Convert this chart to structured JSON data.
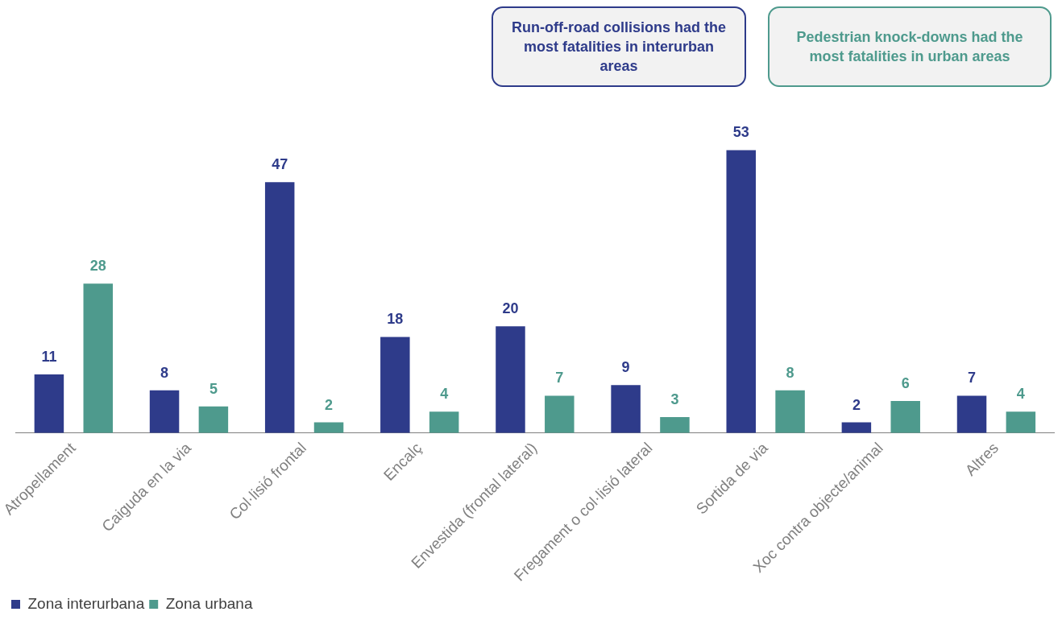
{
  "chart_data": {
    "type": "bar",
    "categories": [
      "Atropellament",
      "Caiguda en la via",
      "Col·lisió frontal",
      "Encalç",
      "Envestida (frontal lateral)",
      "Fregament o col·lisió lateral",
      "Sortida de via",
      "Xoc contra objecte/animal",
      "Altres"
    ],
    "series": [
      {
        "name": "Zona interurbana",
        "color": "#2e3b8a",
        "values": [
          11,
          8,
          47,
          18,
          20,
          9,
          53,
          2,
          7
        ]
      },
      {
        "name": "Zona urbana",
        "color": "#4e9a8d",
        "values": [
          28,
          5,
          2,
          4,
          7,
          3,
          8,
          6,
          4
        ]
      }
    ],
    "tick_labels": "x",
    "data_labels": true,
    "grid": false,
    "legend": "bottom left",
    "annotations": [
      "Run-off-road collisions had the most fatalities in interurban areas",
      "Pedestrian knock-downs had the most fatalities in urban areas"
    ]
  }
}
